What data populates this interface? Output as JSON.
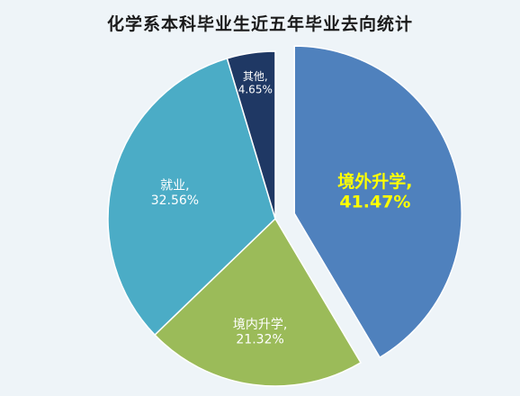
{
  "chart_data": {
    "type": "pie",
    "title": "化学系本科毕业生近五年毕业去向统计",
    "slices": [
      {
        "name": "境外升学",
        "value": 41.47,
        "label": "41.47%",
        "color": "#4f81bd",
        "exploded": true,
        "label_color": "#ffff00"
      },
      {
        "name": "境内升学",
        "value": 21.32,
        "label": "21.32%",
        "color": "#9bbb59",
        "exploded": false,
        "label_color": "#ffffff"
      },
      {
        "name": "就业",
        "value": 32.56,
        "label": "32.56%",
        "color": "#4bacc6",
        "exploded": false,
        "label_color": "#ffffff"
      },
      {
        "name": "其他",
        "value": 4.65,
        "label": "4.65%",
        "color": "#1f3864",
        "exploded": false,
        "label_color": "#ffffff"
      }
    ],
    "legend": "none"
  }
}
